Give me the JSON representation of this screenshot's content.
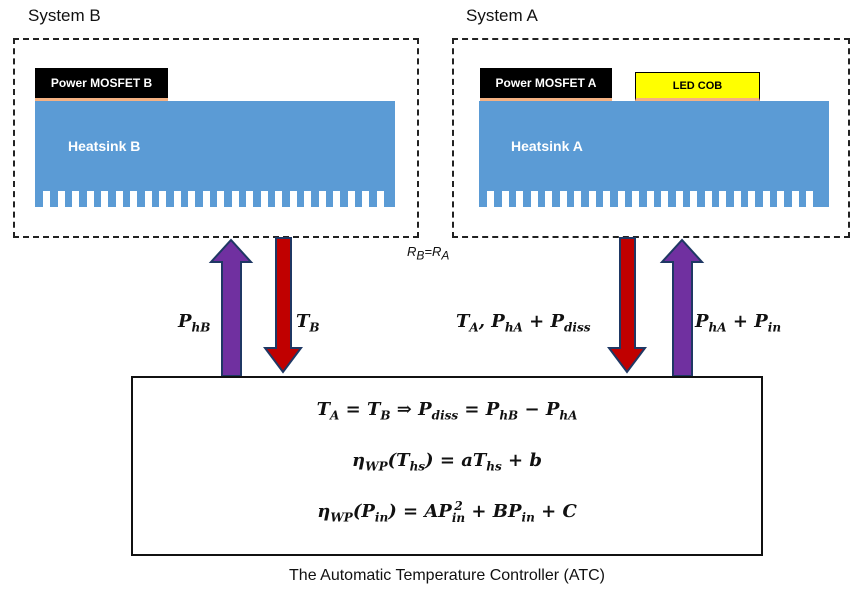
{
  "system_b": {
    "title": "System B",
    "mosfet_label": "Power MOSFET  B",
    "heatsink_label": "Heatsink B"
  },
  "system_a": {
    "title": "System A",
    "mosfet_label": "Power MOSFET  A",
    "led_label": "LED COB",
    "heatsink_label": "Heatsink A"
  },
  "resistance_label": {
    "r_b": "R",
    "r_b_sub": "B",
    "eq": "=",
    "r_a": "R",
    "r_a_sub": "A"
  },
  "arrows": {
    "p_hb": {
      "main": "P",
      "sub": "hB"
    },
    "t_b": {
      "main": "T",
      "sub": "B"
    },
    "t_a_group": {
      "t": "T",
      "t_sub": "A",
      "sep": ", ",
      "p": "P",
      "p_sub": "hA",
      "plus": " + ",
      "p2": "P",
      "p2_sub": "diss"
    },
    "p_ha_in": {
      "p": "P",
      "p_sub": "hA",
      "plus": " + ",
      "p2": "P",
      "p2_sub": "in"
    }
  },
  "equations": {
    "eq1": {
      "ta": "T",
      "ta_sub": "A",
      "eq": " = ",
      "tb": "T",
      "tb_sub": "B",
      "implies": " ⇒ ",
      "pd": "P",
      "pd_sub": "diss",
      "eq2": " = ",
      "phb": "P",
      "phb_sub": "hB",
      "minus": " − ",
      "pha": "P",
      "pha_sub": "hA"
    },
    "eq2": {
      "eta": "η",
      "eta_sub": "WP",
      "open": "(",
      "t": "T",
      "t_sub": "hs",
      "close": ") = ",
      "a": "a",
      "t2": "T",
      "t2_sub": "hs",
      "plus": " + ",
      "b": "b"
    },
    "eq3": {
      "eta": "η",
      "eta_sub": "WP",
      "open": "(",
      "p": "P",
      "p_sub": "in",
      "close": ") = ",
      "A": "A",
      "p2": "P",
      "p2_sub": "in",
      "p2_sup": "2",
      "plus1": " + ",
      "B": "B",
      "p3": "P",
      "p3_sub": "in",
      "plus2": " + ",
      "C": "C"
    }
  },
  "caption": "The Automatic Temperature Controller (ATC)",
  "colors": {
    "heatsink": "#5b9bd5",
    "arrow_up": "#7030a0",
    "arrow_down": "#c00000",
    "arrow_edge": "#1f3864",
    "led": "#ffff00"
  }
}
